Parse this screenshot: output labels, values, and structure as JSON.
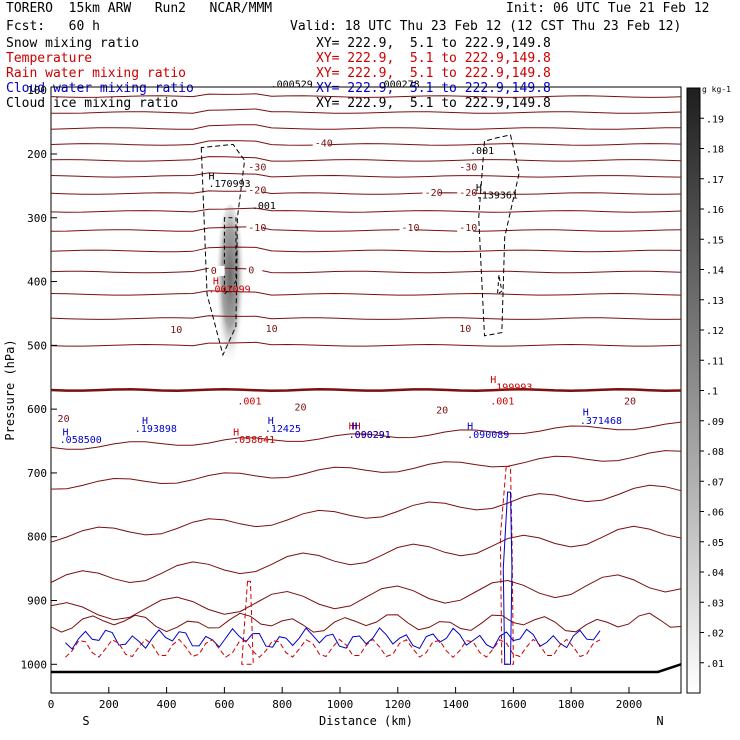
{
  "header": {
    "model": "TORERO  15km ARW   Run2   NCAR/MMM",
    "init": "Init: 06 UTC Tue 21 Feb 12",
    "fcst": "Fcst:   60 h",
    "valid": "Valid: 18 UTC Thu 23 Feb 12 (12 CST Thu 23 Feb 12)"
  },
  "legend": [
    {
      "label": "Snow mixing ratio",
      "xy": "XY= 222.9,  5.1 to 222.9,149.8",
      "color": "#000000"
    },
    {
      "label": "Temperature",
      "xy": "XY= 222.9,  5.1 to 222.9,149.8",
      "color": "#cc0000"
    },
    {
      "label": "Rain water mixing ratio",
      "xy": "XY= 222.9,  5.1 to 222.9,149.8",
      "color": "#cc0000"
    },
    {
      "label": "Cloud water mixing ratio",
      "xy": "XY= 222.9,  5.1 to 222.9,149.8",
      "color": "#0000cc"
    },
    {
      "label": "Cloud ice mixing ratio",
      "xy": "XY= 222.9,  5.1 to 222.9,149.8",
      "color": "#000000"
    }
  ],
  "colorbar": {
    "unit": "g kg-1",
    "ticks": [
      ".01",
      ".02",
      ".03",
      ".04",
      ".05",
      ".06",
      ".07",
      ".08",
      ".09",
      ".1",
      ".11",
      ".12",
      ".13",
      ".14",
      ".15",
      ".16",
      ".17",
      ".18",
      ".19"
    ]
  },
  "chart_data": {
    "type": "cross-section",
    "xlabel": "Distance (km)",
    "ylabel": "Pressure (hPa)",
    "xlim": [
      0,
      2180
    ],
    "ylim": [
      1045,
      95
    ],
    "xticks": [
      0,
      200,
      400,
      600,
      800,
      1000,
      1200,
      1400,
      1600,
      1800,
      2000
    ],
    "yticks": [
      200,
      300,
      400,
      500,
      600,
      700,
      800,
      900,
      1000
    ],
    "top_tick_label": "100",
    "endpoints": {
      "left": "S",
      "right": "N"
    },
    "surface_pressure": 1012,
    "temperature_contours": [
      {
        "value": "-40",
        "label_pos": [
          930,
          188
        ]
      },
      {
        "value": "-30",
        "label_pos": [
          700,
          226
        ]
      },
      {
        "value": "-30",
        "label_pos": [
          1430,
          226
        ]
      },
      {
        "value": "-20",
        "label_pos": [
          700,
          262
        ]
      },
      {
        "value": "-20",
        "label_pos": [
          1310,
          266
        ]
      },
      {
        "value": "-20",
        "label_pos": [
          1430,
          266
        ]
      },
      {
        "value": "-10",
        "label_pos": [
          700,
          321
        ]
      },
      {
        "value": "-10",
        "label_pos": [
          1230,
          321
        ]
      },
      {
        "value": "-10",
        "label_pos": [
          1430,
          321
        ]
      },
      {
        "value": "0",
        "label_pos": [
          570,
          388
        ]
      },
      {
        "value": "0",
        "label_pos": [
          700,
          387
        ]
      },
      {
        "value": "10",
        "label_pos": [
          430,
          481
        ]
      },
      {
        "value": "10",
        "label_pos": [
          760,
          479
        ]
      },
      {
        "value": "10",
        "label_pos": [
          1430,
          479
        ]
      },
      {
        "value": "20",
        "label_pos": [
          40,
          620
        ]
      },
      {
        "value": "20",
        "label_pos": [
          860,
          602
        ]
      },
      {
        "value": "20",
        "label_pos": [
          1350,
          607
        ]
      },
      {
        "value": "20",
        "label_pos": [
          2000,
          593
        ]
      }
    ],
    "annotations": [
      {
        "text": ".000529",
        "x": 760,
        "y": 96,
        "color": "#000000"
      },
      {
        "text": ".000278",
        "x": 1130,
        "y": 96,
        "color": "#000000"
      },
      {
        "text": "H",
        "x": 545,
        "y": 240,
        "color": "#000000"
      },
      {
        "text": ".170993",
        "x": 545,
        "y": 252,
        "color": "#000000"
      },
      {
        "text": ".001",
        "x": 695,
        "y": 286,
        "color": "#000000"
      },
      {
        "text": ".001",
        "x": 1450,
        "y": 200,
        "color": "#000000"
      },
      {
        "text": "H",
        "x": 1470,
        "y": 258,
        "color": "#000000"
      },
      {
        "text": ".139361",
        "x": 1470,
        "y": 270,
        "color": "#000000"
      },
      {
        "text": "H",
        "x": 560,
        "y": 405,
        "color": "#cc0000"
      },
      {
        "text": ".001099",
        "x": 545,
        "y": 417,
        "color": "#cc0000"
      },
      {
        "text": "H",
        "x": 1520,
        "y": 559,
        "color": "#cc0000"
      },
      {
        "text": ".199993",
        "x": 1520,
        "y": 571,
        "color": "#cc0000"
      },
      {
        "text": ".001",
        "x": 1520,
        "y": 593,
        "color": "#cc0000"
      },
      {
        "text": ".001",
        "x": 645,
        "y": 593,
        "color": "#cc0000"
      },
      {
        "text": "H",
        "x": 630,
        "y": 641,
        "color": "#cc0000"
      },
      {
        "text": ".058641",
        "x": 630,
        "y": 653,
        "color": "#cc0000"
      },
      {
        "text": "HH",
        "x": 1030,
        "y": 632,
        "color": "#cc0000"
      },
      {
        "text": ".000291",
        "x": 1030,
        "y": 645,
        "color": "#cc0000"
      },
      {
        "text": "H",
        "x": 315,
        "y": 623,
        "color": "#0000cc"
      },
      {
        "text": ".193898",
        "x": 290,
        "y": 636,
        "color": "#0000cc"
      },
      {
        "text": "H",
        "x": 750,
        "y": 623,
        "color": "#0000cc"
      },
      {
        "text": ".12425",
        "x": 740,
        "y": 636,
        "color": "#0000cc"
      },
      {
        "text": "H",
        "x": 1040,
        "y": 632,
        "color": "#0000cc"
      },
      {
        "text": ".090291",
        "x": 1030,
        "y": 645,
        "color": "#0000cc"
      },
      {
        "text": "H",
        "x": 1440,
        "y": 632,
        "color": "#0000cc"
      },
      {
        "text": ".090089",
        "x": 1440,
        "y": 645,
        "color": "#0000cc"
      },
      {
        "text": "H",
        "x": 1840,
        "y": 610,
        "color": "#0000cc"
      },
      {
        "text": ".371468",
        "x": 1830,
        "y": 623,
        "color": "#0000cc"
      },
      {
        "text": "H",
        "x": 40,
        "y": 641,
        "color": "#0000cc"
      },
      {
        "text": ".058500",
        "x": 30,
        "y": 653,
        "color": "#0000cc"
      }
    ]
  }
}
